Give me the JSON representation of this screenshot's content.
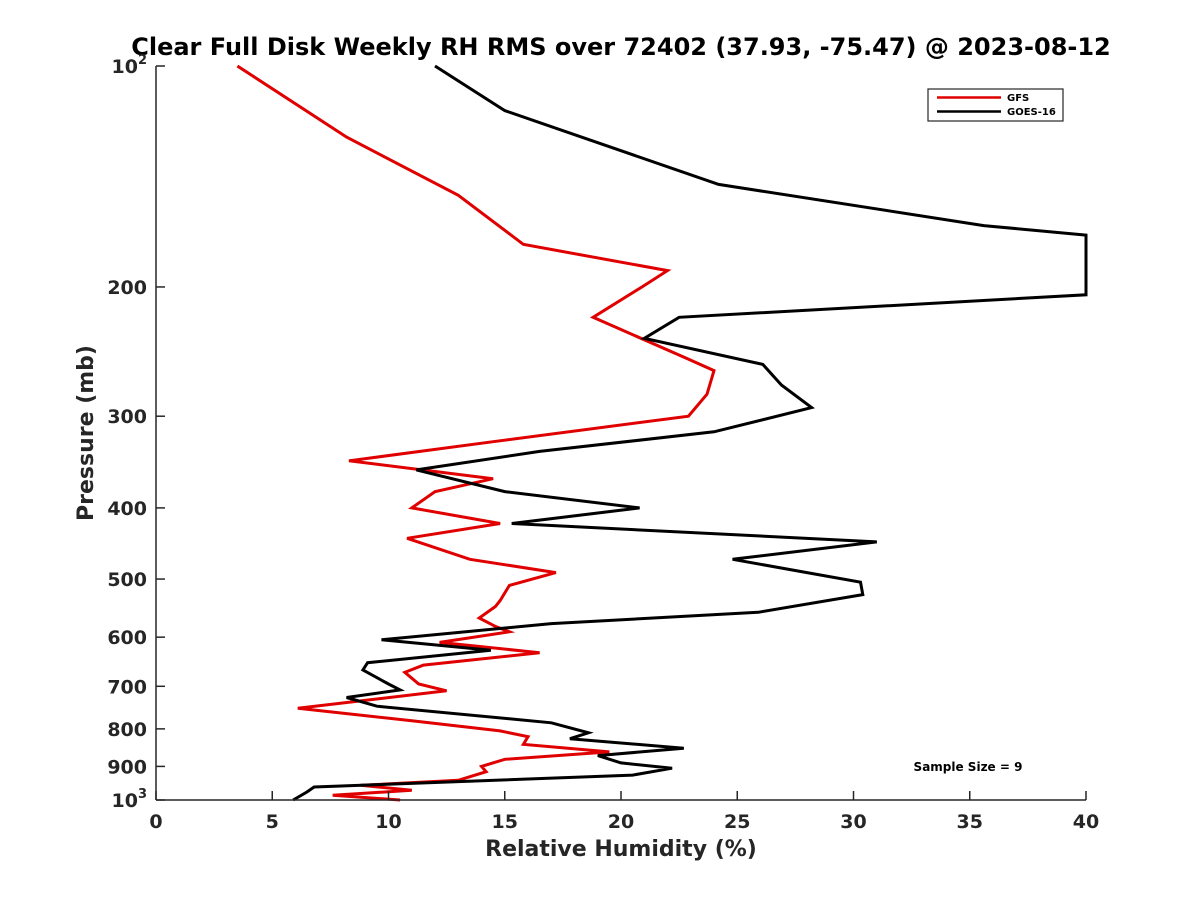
{
  "chart_data": {
    "type": "line",
    "title": "Clear Full Disk Weekly RH RMS over 72402 (37.93, -75.47) @ 2023-08-12",
    "xlabel": "Relative Humidity (%)",
    "ylabel": "Pressure (mb)",
    "xlim": [
      0,
      40
    ],
    "ylim": [
      100,
      1000
    ],
    "y_scale": "log",
    "y_reversed": true,
    "x_ticks": [
      0,
      5,
      10,
      15,
      20,
      25,
      30,
      35,
      40
    ],
    "x_tick_labels": [
      "0",
      "5",
      "10",
      "15",
      "20",
      "25",
      "30",
      "35",
      "40"
    ],
    "y_ticks": [
      {
        "value": 100,
        "label": "10",
        "sup": "2"
      },
      {
        "value": 200,
        "label": "200"
      },
      {
        "value": 300,
        "label": "300"
      },
      {
        "value": 400,
        "label": "400"
      },
      {
        "value": 500,
        "label": "500"
      },
      {
        "value": 600,
        "label": "600"
      },
      {
        "value": 700,
        "label": "700"
      },
      {
        "value": 800,
        "label": "800"
      },
      {
        "value": 900,
        "label": "900"
      },
      {
        "value": 1000,
        "label": "10",
        "sup": "3"
      }
    ],
    "legend_position": "top-right",
    "annotation": "Sample Size = 9",
    "series": [
      {
        "name": "GFS",
        "color": "#e00000",
        "points": [
          [
            3.5,
            100
          ],
          [
            8.2,
            125
          ],
          [
            13.0,
            150
          ],
          [
            15.8,
            175
          ],
          [
            22.0,
            190
          ],
          [
            20.9,
            200
          ],
          [
            18.8,
            220
          ],
          [
            22.8,
            250
          ],
          [
            24.0,
            260
          ],
          [
            23.7,
            280
          ],
          [
            22.9,
            300
          ],
          [
            14.5,
            325
          ],
          [
            8.3,
            345
          ],
          [
            14.5,
            365
          ],
          [
            12.0,
            380
          ],
          [
            11.0,
            400
          ],
          [
            14.8,
            420
          ],
          [
            10.8,
            440
          ],
          [
            13.5,
            470
          ],
          [
            17.2,
            490
          ],
          [
            15.2,
            510
          ],
          [
            14.8,
            535
          ],
          [
            14.6,
            545
          ],
          [
            13.9,
            565
          ],
          [
            14.6,
            580
          ],
          [
            15.2,
            590
          ],
          [
            12.2,
            610
          ],
          [
            16.5,
            630
          ],
          [
            11.5,
            655
          ],
          [
            10.7,
            670
          ],
          [
            11.3,
            695
          ],
          [
            12.5,
            710
          ],
          [
            6.1,
            750
          ],
          [
            11.0,
            780
          ],
          [
            14.8,
            805
          ],
          [
            16.0,
            820
          ],
          [
            15.8,
            840
          ],
          [
            19.5,
            860
          ],
          [
            15.0,
            880
          ],
          [
            14.0,
            900
          ],
          [
            14.2,
            915
          ],
          [
            13.0,
            940
          ],
          [
            8.8,
            955
          ],
          [
            11.0,
            970
          ],
          [
            7.6,
            985
          ],
          [
            10.5,
            1000
          ]
        ]
      },
      {
        "name": "GOES-16",
        "color": "#000000",
        "points": [
          [
            12.0,
            100
          ],
          [
            15.0,
            115
          ],
          [
            24.2,
            145
          ],
          [
            35.6,
            165
          ],
          [
            40.0,
            170
          ],
          [
            40.0,
            205
          ],
          [
            22.5,
            220
          ],
          [
            21.0,
            235
          ],
          [
            26.1,
            255
          ],
          [
            26.9,
            272
          ],
          [
            28.2,
            292
          ],
          [
            24.0,
            315
          ],
          [
            16.5,
            335
          ],
          [
            11.2,
            355
          ],
          [
            15.0,
            380
          ],
          [
            20.8,
            400
          ],
          [
            15.3,
            420
          ],
          [
            31.0,
            445
          ],
          [
            24.8,
            470
          ],
          [
            28.0,
            490
          ],
          [
            30.3,
            505
          ],
          [
            30.4,
            525
          ],
          [
            25.9,
            555
          ],
          [
            17.0,
            575
          ],
          [
            9.7,
            605
          ],
          [
            14.4,
            625
          ],
          [
            9.1,
            650
          ],
          [
            8.9,
            665
          ],
          [
            10.0,
            695
          ],
          [
            10.5,
            708
          ],
          [
            8.2,
            725
          ],
          [
            9.5,
            745
          ],
          [
            17.0,
            785
          ],
          [
            18.6,
            810
          ],
          [
            17.8,
            825
          ],
          [
            22.7,
            850
          ],
          [
            19.0,
            870
          ],
          [
            20.0,
            890
          ],
          [
            22.2,
            905
          ],
          [
            20.5,
            925
          ],
          [
            6.8,
            960
          ],
          [
            6.5,
            975
          ],
          [
            5.9,
            1000
          ]
        ]
      }
    ]
  }
}
